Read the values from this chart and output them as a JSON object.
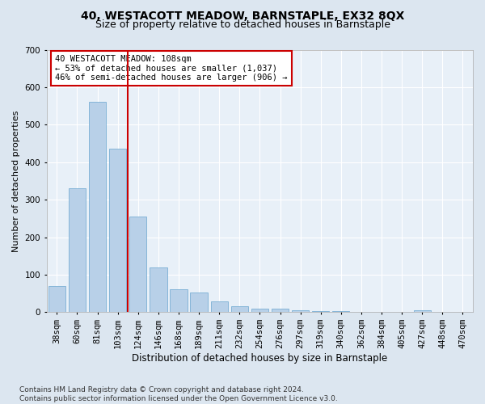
{
  "title": "40, WESTACOTT MEADOW, BARNSTAPLE, EX32 8QX",
  "subtitle": "Size of property relative to detached houses in Barnstaple",
  "xlabel": "Distribution of detached houses by size in Barnstaple",
  "ylabel": "Number of detached properties",
  "categories": [
    "38sqm",
    "60sqm",
    "81sqm",
    "103sqm",
    "124sqm",
    "146sqm",
    "168sqm",
    "189sqm",
    "211sqm",
    "232sqm",
    "254sqm",
    "276sqm",
    "297sqm",
    "319sqm",
    "340sqm",
    "362sqm",
    "384sqm",
    "405sqm",
    "427sqm",
    "448sqm",
    "470sqm"
  ],
  "values": [
    70,
    330,
    560,
    435,
    255,
    120,
    62,
    52,
    28,
    15,
    10,
    10,
    5,
    3,
    2,
    1,
    1,
    0,
    5,
    0,
    0
  ],
  "bar_color": "#b8d0e8",
  "bar_edge_color": "#7aafd4",
  "vline_x_idx": 3,
  "vline_color": "#cc0000",
  "annotation_text": "40 WESTACOTT MEADOW: 108sqm\n← 53% of detached houses are smaller (1,037)\n46% of semi-detached houses are larger (906) →",
  "annotation_box_color": "#ffffff",
  "annotation_box_edge": "#cc0000",
  "ylim": [
    0,
    700
  ],
  "yticks": [
    0,
    100,
    200,
    300,
    400,
    500,
    600,
    700
  ],
  "background_color": "#dce6f0",
  "plot_bg_color": "#e8f0f8",
  "footer": "Contains HM Land Registry data © Crown copyright and database right 2024.\nContains public sector information licensed under the Open Government Licence v3.0.",
  "title_fontsize": 10,
  "subtitle_fontsize": 9,
  "xlabel_fontsize": 8.5,
  "ylabel_fontsize": 8,
  "tick_fontsize": 7.5,
  "footer_fontsize": 6.5,
  "annotation_fontsize": 7.5
}
